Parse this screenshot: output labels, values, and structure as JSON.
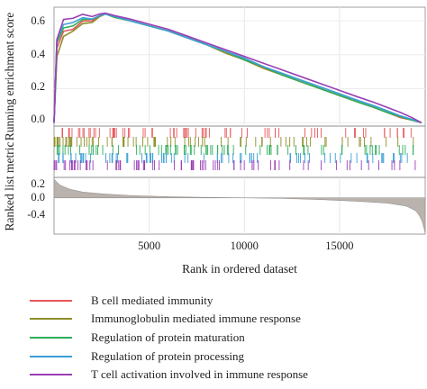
{
  "chart_data": {
    "type": "line",
    "title": "",
    "top_panel": {
      "ylabel": "Running enrichment score",
      "yticks": [
        "0.6",
        "0.4",
        "0.2",
        "0.0"
      ],
      "ylim": [
        -0.02,
        0.68
      ],
      "x_grid": [
        5000,
        10000,
        15000
      ],
      "x_range": [
        0,
        19500
      ],
      "grid": true
    },
    "rug_panel": {
      "description_rows": 5
    },
    "bottom_panel": {
      "ylabel": "Ranked list metric",
      "yticks": [
        "0.2",
        "0.0",
        "-0.4"
      ],
      "ylim": [
        -0.62,
        0.35
      ],
      "metric_curve": {
        "x": [
          0,
          300,
          800,
          1500,
          2500,
          4000,
          6000,
          8000,
          10000,
          12000,
          14000,
          16000,
          17500,
          18500,
          19000,
          19300,
          19500
        ],
        "y": [
          0.32,
          0.22,
          0.15,
          0.1,
          0.07,
          0.04,
          0.02,
          0.008,
          0.0,
          -0.01,
          -0.03,
          -0.06,
          -0.09,
          -0.14,
          -0.22,
          -0.35,
          -0.6
        ]
      }
    },
    "xlabel": "Rank in ordered dataset",
    "xticks": [
      "5000",
      "10000",
      "15000"
    ],
    "xtick_values": [
      5000,
      10000,
      15000
    ],
    "legend_position": "bottom",
    "series": [
      {
        "name": "B cell mediated immunity",
        "color": "#E8565B",
        "x": [
          0,
          150,
          500,
          1000,
          1500,
          2000,
          2400,
          2700,
          3200,
          4000,
          5000,
          6000,
          7000,
          8000,
          9000,
          10000,
          11000,
          12000,
          13000,
          14000,
          15000,
          16000,
          16800,
          17500,
          18200,
          18800,
          19300
        ],
        "y": [
          0.0,
          0.45,
          0.53,
          0.56,
          0.59,
          0.61,
          0.63,
          0.64,
          0.625,
          0.6,
          0.57,
          0.54,
          0.5,
          0.46,
          0.42,
          0.37,
          0.33,
          0.28,
          0.24,
          0.2,
          0.16,
          0.12,
          0.09,
          0.06,
          0.03,
          0.015,
          0.0
        ]
      },
      {
        "name": "Immunoglobulin mediated immune response",
        "color": "#8E8E28",
        "x": [
          0,
          150,
          500,
          1000,
          1500,
          2000,
          2400,
          2700,
          3200,
          4000,
          5000,
          6000,
          7000,
          8000,
          9000,
          10000,
          11000,
          12000,
          13000,
          14000,
          15000,
          16000,
          16800,
          17500,
          18200,
          18800,
          19300
        ],
        "y": [
          0.0,
          0.4,
          0.5,
          0.55,
          0.575,
          0.6,
          0.625,
          0.64,
          0.62,
          0.6,
          0.57,
          0.54,
          0.5,
          0.46,
          0.41,
          0.37,
          0.32,
          0.28,
          0.24,
          0.2,
          0.16,
          0.12,
          0.09,
          0.06,
          0.035,
          0.015,
          0.0
        ]
      },
      {
        "name": "Regulation of protein maturation",
        "color": "#2CAE5A",
        "x": [
          0,
          150,
          500,
          1000,
          1500,
          2000,
          2400,
          2700,
          3200,
          4000,
          5000,
          6000,
          7000,
          8000,
          9000,
          10000,
          11000,
          12000,
          13000,
          14000,
          15000,
          16000,
          16800,
          17500,
          18200,
          18800,
          19300
        ],
        "y": [
          0.0,
          0.48,
          0.55,
          0.58,
          0.6,
          0.62,
          0.63,
          0.64,
          0.62,
          0.6,
          0.57,
          0.54,
          0.5,
          0.46,
          0.42,
          0.37,
          0.33,
          0.28,
          0.24,
          0.2,
          0.16,
          0.12,
          0.09,
          0.06,
          0.035,
          0.015,
          0.0
        ]
      },
      {
        "name": "Regulation of protein processing",
        "color": "#3A9FD6",
        "x": [
          0,
          150,
          500,
          1000,
          1500,
          2000,
          2400,
          2700,
          3200,
          4000,
          5000,
          6000,
          7000,
          8000,
          9000,
          10000,
          11000,
          12000,
          13000,
          14000,
          15000,
          16000,
          16800,
          17500,
          18200,
          18800,
          19300
        ],
        "y": [
          0.0,
          0.5,
          0.57,
          0.6,
          0.61,
          0.62,
          0.63,
          0.64,
          0.625,
          0.6,
          0.57,
          0.54,
          0.5,
          0.46,
          0.42,
          0.38,
          0.33,
          0.29,
          0.25,
          0.21,
          0.17,
          0.13,
          0.1,
          0.07,
          0.04,
          0.02,
          0.0
        ]
      },
      {
        "name": "T cell activation involved in immune response",
        "color": "#9B3FB5",
        "x": [
          0,
          150,
          500,
          1000,
          1500,
          2000,
          2400,
          2700,
          3200,
          4000,
          5000,
          6000,
          7000,
          8000,
          9000,
          10000,
          11000,
          12000,
          13000,
          14000,
          15000,
          16000,
          16800,
          17500,
          18200,
          18800,
          19300
        ],
        "y": [
          0.0,
          0.5,
          0.6,
          0.625,
          0.63,
          0.635,
          0.64,
          0.645,
          0.63,
          0.61,
          0.58,
          0.55,
          0.51,
          0.47,
          0.43,
          0.39,
          0.35,
          0.31,
          0.27,
          0.23,
          0.19,
          0.15,
          0.12,
          0.09,
          0.06,
          0.03,
          0.0
        ]
      }
    ]
  }
}
